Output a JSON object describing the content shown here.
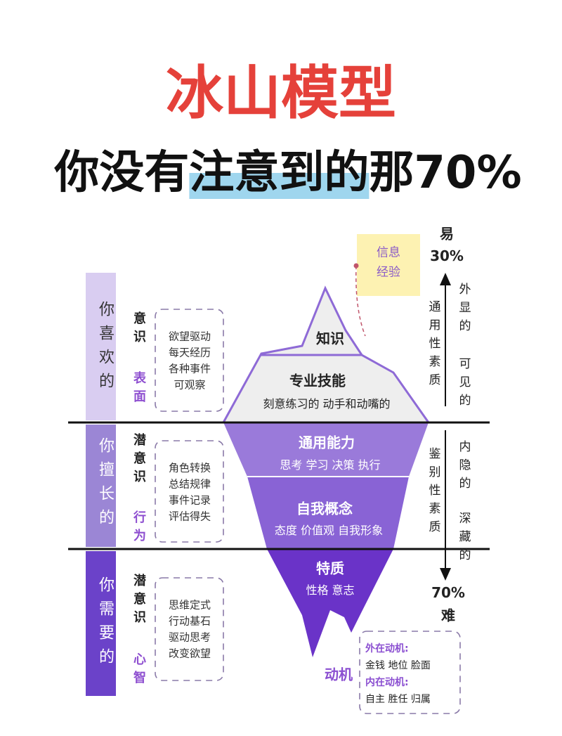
{
  "header": {
    "title": "冰山模型",
    "subtitle": {
      "before": "你没有",
      "highlight": "注意到的",
      "after": "那70%"
    }
  },
  "rows": [
    {
      "label": "你喜欢的",
      "level": "意识",
      "aspect": "表面",
      "items": [
        "欲望驱动",
        "每天经历",
        "各种事件",
        "可观察"
      ]
    },
    {
      "label": "你擅长的",
      "level": "潜意识",
      "aspect": "行为",
      "items": [
        "角色转换",
        "总结规律",
        "事件记录",
        "评估得失"
      ]
    },
    {
      "label": "你需要的",
      "level": "潜意识",
      "aspect": "心智",
      "items": [
        "思维定式",
        "行动基石",
        "驱动思考",
        "改变欲望"
      ]
    }
  ],
  "iceberg": {
    "layers": [
      {
        "name": "知识"
      },
      {
        "name": "专业技能",
        "detail": "刻意练习的 动手和动嘴的"
      },
      {
        "name": "通用能力",
        "detail": "思考 学习 决策 执行"
      },
      {
        "name": "自我概念",
        "detail": "态度 价值观 自我形象"
      },
      {
        "name": "特质",
        "detail": "性格 意志"
      }
    ],
    "base": "动机"
  },
  "note": [
    "信息",
    "经验"
  ],
  "scale": {
    "top": {
      "label": "易",
      "percent": "30%",
      "type": "通用性素质",
      "traits": [
        "外显的",
        "可见的"
      ]
    },
    "bottom": {
      "type": "鉴别性素质",
      "traits": [
        "内隐的",
        "深藏的"
      ],
      "percent": "70%",
      "label": "难"
    }
  },
  "motive_box": [
    {
      "heading": "外在动机:",
      "items": "金钱 地位 脸面"
    },
    {
      "heading": "内在动机:",
      "items": "自主 胜任 归属"
    }
  ]
}
